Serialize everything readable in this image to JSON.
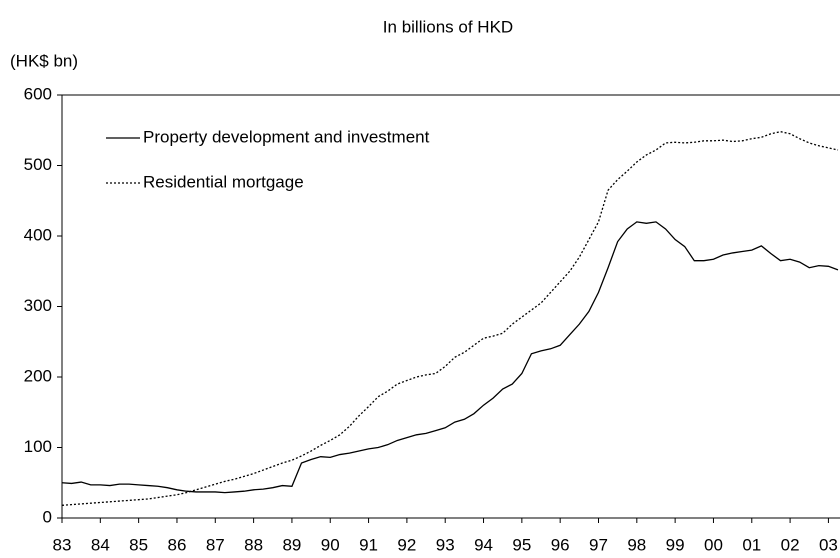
{
  "chart_data": {
    "type": "line",
    "title": "In billions of HKD",
    "y_label": "(HK$ bn)",
    "categories": [
      "83",
      null,
      null,
      null,
      "84",
      null,
      null,
      null,
      "85",
      null,
      null,
      null,
      "86",
      null,
      null,
      null,
      "87",
      null,
      null,
      null,
      "88",
      null,
      null,
      null,
      "89",
      null,
      null,
      null,
      "90",
      null,
      null,
      null,
      "91",
      null,
      null,
      null,
      "92",
      null,
      null,
      null,
      "93",
      null,
      null,
      null,
      "94",
      null,
      null,
      null,
      "95",
      null,
      null,
      null,
      "96",
      null,
      null,
      null,
      "97",
      null,
      null,
      null,
      "98",
      null,
      null,
      null,
      "99",
      null,
      null,
      null,
      "00",
      null,
      null,
      null,
      "01",
      null,
      null,
      null,
      "02",
      null,
      null,
      null,
      "03",
      null
    ],
    "series": [
      {
        "name": "Property development and investment",
        "color": "#000000",
        "style": "solid",
        "values": [
          50,
          49,
          51,
          47,
          47,
          46,
          48,
          48,
          47,
          46,
          45,
          43,
          40,
          38,
          37,
          37,
          37,
          36,
          37,
          38,
          40,
          41,
          43,
          46,
          45,
          78,
          83,
          87,
          86,
          90,
          92,
          95,
          98,
          100,
          104,
          110,
          114,
          118,
          120,
          124,
          128,
          136,
          140,
          148,
          160,
          170,
          183,
          190,
          205,
          233,
          237,
          240,
          245,
          260,
          275,
          293,
          320,
          355,
          392,
          410,
          420,
          418,
          420,
          410,
          395,
          385,
          365,
          365,
          367,
          373,
          376,
          378,
          380,
          386,
          375,
          365,
          367,
          363,
          355,
          358,
          357,
          352
        ]
      },
      {
        "name": "Residential mortgage",
        "color": "#000000",
        "style": "dotted",
        "values": [
          18,
          19,
          20,
          21,
          22,
          23,
          24,
          25,
          26,
          27,
          29,
          31,
          33,
          36,
          40,
          44,
          48,
          52,
          55,
          59,
          63,
          68,
          73,
          78,
          82,
          88,
          95,
          103,
          110,
          118,
          130,
          145,
          158,
          172,
          180,
          190,
          195,
          200,
          203,
          205,
          215,
          228,
          235,
          245,
          255,
          258,
          262,
          275,
          285,
          295,
          305,
          320,
          335,
          350,
          370,
          395,
          420,
          465,
          480,
          492,
          505,
          515,
          522,
          532,
          533,
          532,
          533,
          535,
          535,
          536,
          534,
          535,
          538,
          540,
          545,
          548,
          545,
          538,
          532,
          528,
          525,
          522
        ]
      }
    ],
    "ylim": [
      0,
      600
    ],
    "yticks": [
      0,
      100,
      200,
      300,
      400,
      500,
      600
    ],
    "grid": false
  }
}
